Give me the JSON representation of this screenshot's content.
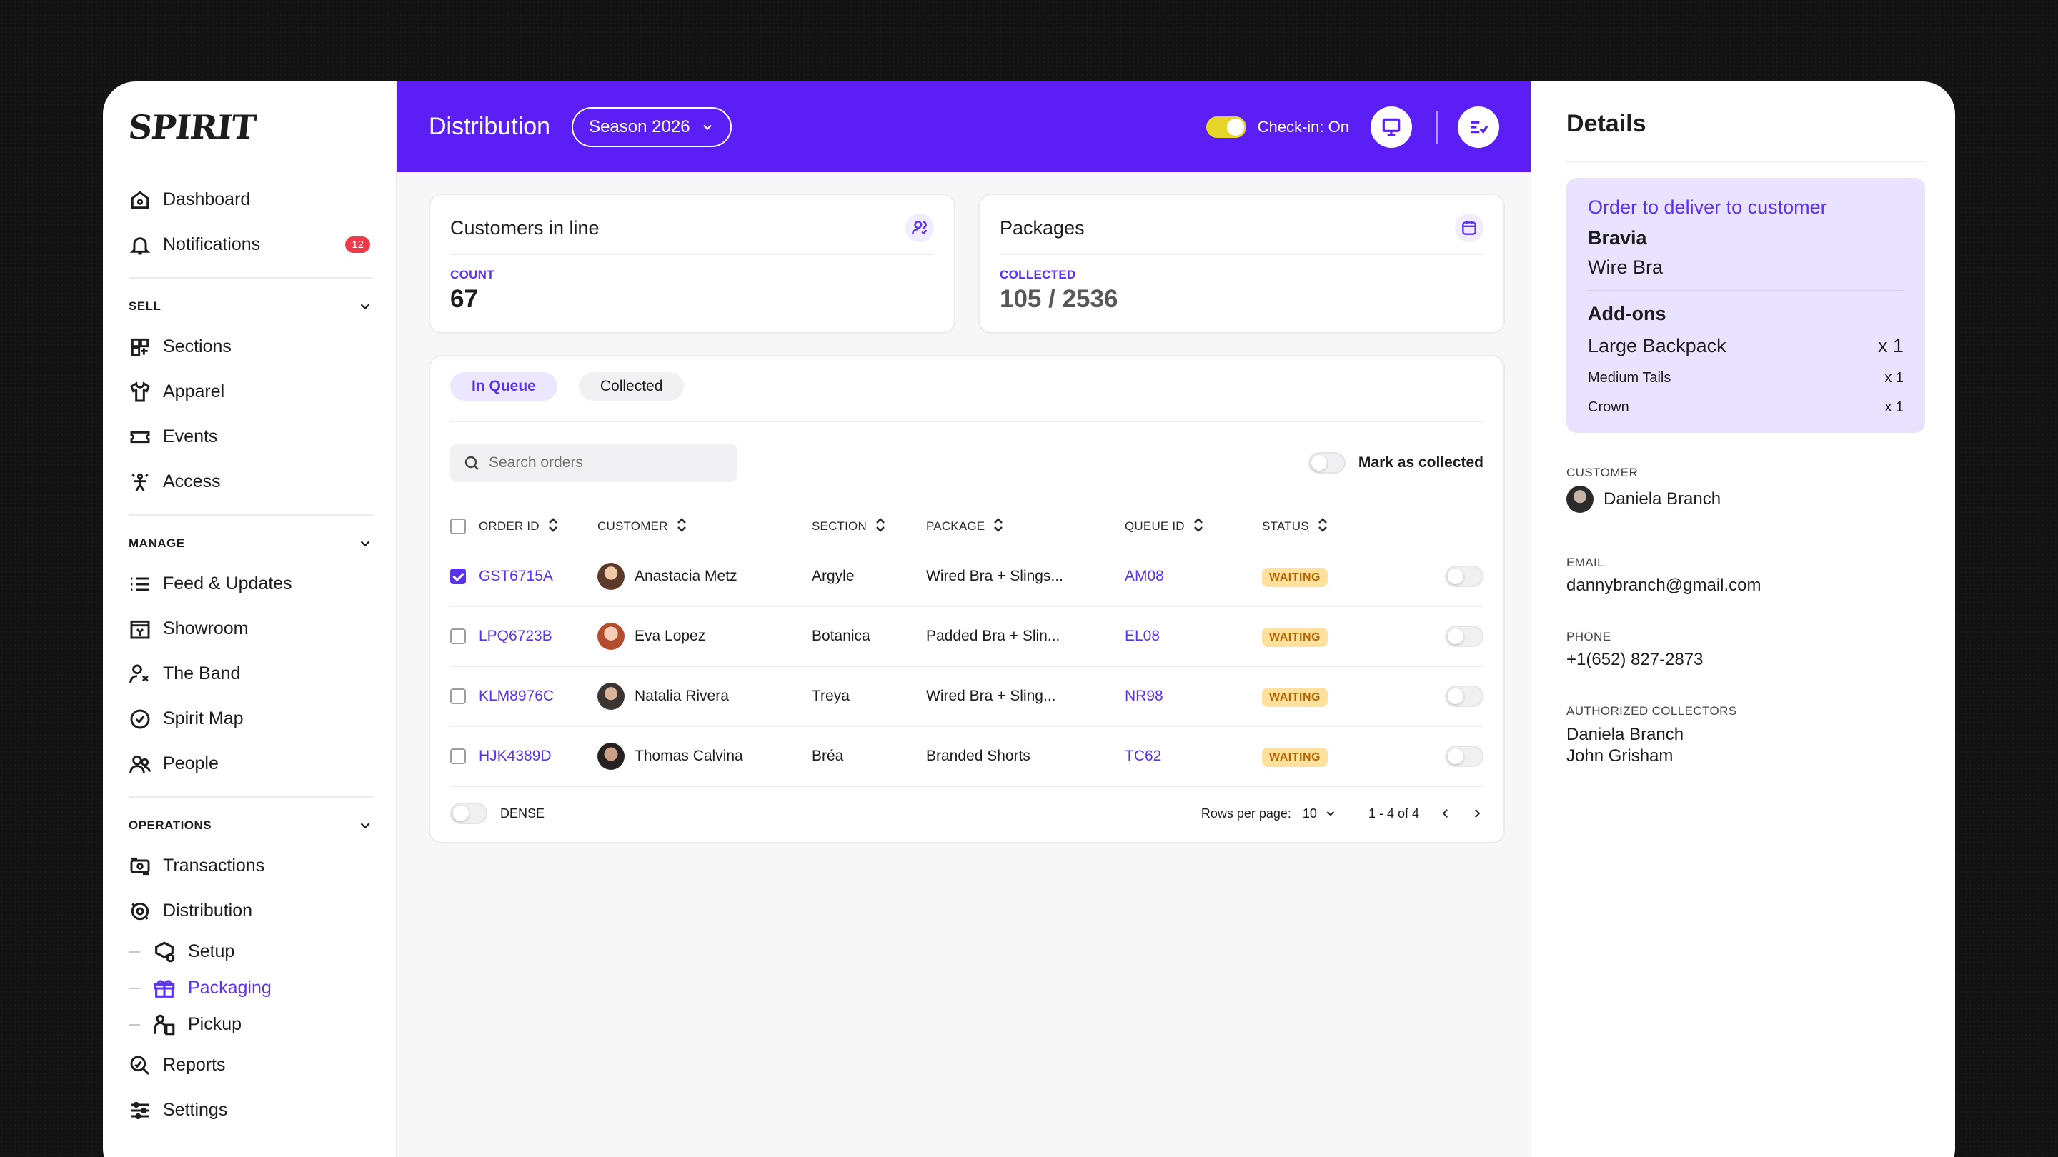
{
  "sidebar": {
    "logo": "SPIRIT",
    "top_items": [
      {
        "label": "Dashboard",
        "icon": "home-icon"
      },
      {
        "label": "Notifications",
        "icon": "bell-icon",
        "badge": "12"
      }
    ],
    "groups": [
      {
        "title": "SELL",
        "items": [
          {
            "label": "Sections",
            "icon": "sections-icon"
          },
          {
            "label": "Apparel",
            "icon": "shirt-icon"
          },
          {
            "label": "Events",
            "icon": "ticket-icon"
          },
          {
            "label": "Access",
            "icon": "access-icon"
          }
        ]
      },
      {
        "title": "MANAGE",
        "items": [
          {
            "label": "Feed & Updates",
            "icon": "list-icon"
          },
          {
            "label": "Showroom",
            "icon": "showroom-icon"
          },
          {
            "label": "The Band",
            "icon": "band-icon"
          },
          {
            "label": "Spirit Map",
            "icon": "check-circle-icon"
          },
          {
            "label": "People",
            "icon": "people-icon"
          }
        ]
      },
      {
        "title": "OPERATIONS",
        "items": [
          {
            "label": "Transactions",
            "icon": "transactions-icon"
          },
          {
            "label": "Distribution",
            "icon": "distribution-icon"
          }
        ]
      }
    ],
    "sub_items": [
      {
        "label": "Setup",
        "icon": "setup-icon"
      },
      {
        "label": "Packaging",
        "icon": "packaging-icon",
        "active": true
      },
      {
        "label": "Pickup",
        "icon": "pickup-icon"
      }
    ],
    "bottom_items": [
      {
        "label": "Reports",
        "icon": "reports-icon"
      },
      {
        "label": "Settings",
        "icon": "settings-icon"
      }
    ]
  },
  "topbar": {
    "title": "Distribution",
    "season": "Season 2026",
    "checkin_label": "Check-in: On"
  },
  "cards": {
    "customers": {
      "title": "Customers in line",
      "label": "COUNT",
      "value": "67"
    },
    "packages": {
      "title": "Packages",
      "label": "COLLECTED",
      "value": "105 / 2536"
    }
  },
  "tabs": [
    "In Queue",
    "Collected"
  ],
  "search": {
    "placeholder": "Search orders"
  },
  "mark_label": "Mark as collected",
  "table": {
    "headers": [
      "ORDER ID",
      "CUSTOMER",
      "SECTION",
      "PACKAGE",
      "QUEUE ID",
      "STATUS"
    ],
    "rows": [
      {
        "order_id": "GST6715A",
        "customer": "Anastacia Metz",
        "section": "Argyle",
        "package": "Wired Bra + Slings...",
        "queue_id": "AM08",
        "status": "WAITING",
        "checked": true
      },
      {
        "order_id": "LPQ6723B",
        "customer": "Eva Lopez",
        "section": "Botanica",
        "package": "Padded Bra + Slin...",
        "queue_id": "EL08",
        "status": "WAITING",
        "checked": false
      },
      {
        "order_id": "KLM8976C",
        "customer": "Natalia Rivera",
        "section": "Treya",
        "package": "Wired Bra + Sling...",
        "queue_id": "NR98",
        "status": "WAITING",
        "checked": false
      },
      {
        "order_id": "HJK4389D",
        "customer": "Thomas Calvina",
        "section": "Bréa",
        "package": "Branded Shorts",
        "queue_id": "TC62",
        "status": "WAITING",
        "checked": false
      }
    ]
  },
  "footer": {
    "dense_label": "DENSE",
    "rows_per_page_label": "Rows per page:",
    "rows_per_page": "10",
    "range": "1 - 4 of 4"
  },
  "details": {
    "title": "Details",
    "order_title": "Order to deliver to customer",
    "order_item1": "Bravia",
    "order_item2": "Wire Bra",
    "addons_title": "Add-ons",
    "addons": [
      {
        "name": "Large Backpack",
        "qty": "x 1"
      },
      {
        "name": "Medium Tails",
        "qty": "x 1"
      },
      {
        "name": "Crown",
        "qty": "x 1"
      }
    ],
    "customer_label": "CUSTOMER",
    "customer": "Daniela Branch",
    "email_label": "EMAIL",
    "email": "dannybranch@gmail.com",
    "phone_label": "PHONE",
    "phone": "+1(652) 827-2873",
    "collectors_label": "AUTHORIZED COLLECTORS",
    "collectors": [
      "Daniela Branch",
      "John Grisham"
    ]
  },
  "colors": {
    "accent": "#5b1ff5",
    "status_waiting": "#ffe09c",
    "badge": "#ef3a4a"
  }
}
